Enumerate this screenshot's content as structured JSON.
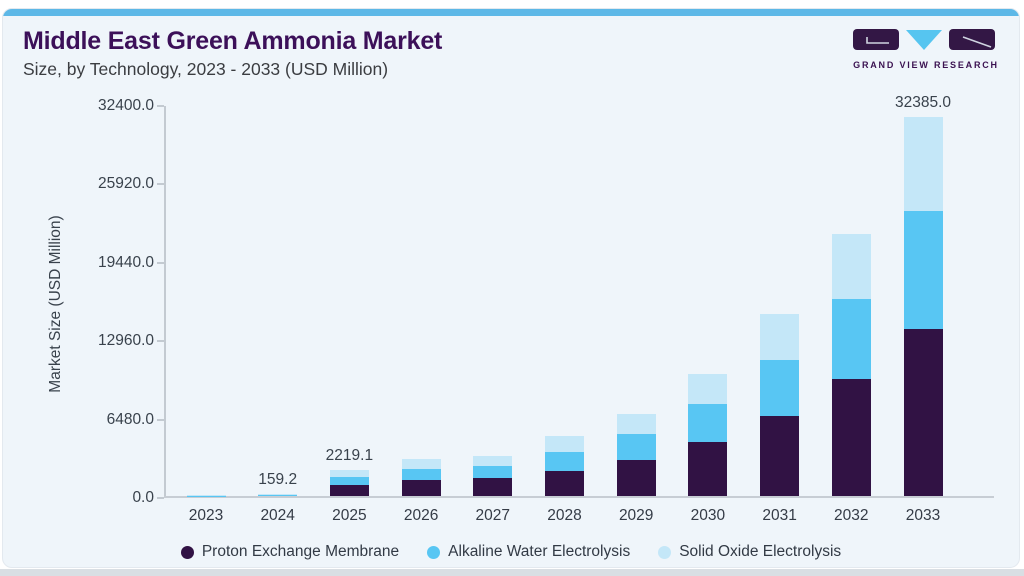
{
  "page": {
    "title": "Middle East Green Ammonia Market",
    "subtitle": "Size, by Technology, 2023 - 2033 (USD Million)"
  },
  "logo": {
    "text": "GRAND VIEW RESEARCH"
  },
  "colors": {
    "top_accent_bar": "#5db8e7",
    "card_background": "#eff5fa",
    "title_purple": "#3c1059",
    "axis_text": "#39424c",
    "axis_line": "#c3cad1",
    "bottom_strip": "#d9dee3",
    "series_pem": "#311244",
    "series_awe": "#58c6f3",
    "series_soe": "#c4e7f8"
  },
  "chart_data": {
    "type": "bar",
    "stacked": true,
    "title": "Middle East Green Ammonia Market",
    "subtitle": "Size, by Technology, 2023 - 2033 (USD Million)",
    "xlabel": "",
    "ylabel": "Market Size (USD Million)",
    "categories": [
      "2023",
      "2024",
      "2025",
      "2026",
      "2027",
      "2028",
      "2029",
      "2030",
      "2031",
      "2032",
      "2033"
    ],
    "series": [
      {
        "name": "Proton Exchange Membrane",
        "color": "#311244",
        "values": [
          22,
          70,
          963.1,
          1340,
          1570,
          2180,
          3100,
          4610,
          6860,
          9970,
          14270
        ]
      },
      {
        "name": "Alkaline Water Electrolysis",
        "color": "#58c6f3",
        "values": [
          16,
          50,
          620,
          1000,
          1025,
          1600,
          2160,
          3250,
          4780,
          6860,
          10055
        ]
      },
      {
        "name": "Solid Oxide Electrolysis",
        "color": "#c4e7f8",
        "values": [
          12,
          39.2,
          636,
          795,
          855,
          1310,
          1740,
          2590,
          3900,
          5530,
          8060
        ]
      }
    ],
    "totals": [
      50,
      159.2,
      2219.1,
      3135,
      3450,
      5090,
      7000,
      10450,
      15540,
      22360,
      32385.0
    ],
    "bar_value_labels": [
      "",
      "159.2",
      "2219.1",
      "",
      "",
      "",
      "",
      "",
      "",
      "",
      "32385.0"
    ],
    "yticks": [
      0,
      6480,
      12960,
      19440,
      25920,
      32400
    ],
    "ytick_labels": [
      "0.0",
      "6480.0",
      "12960.0",
      "19440.0",
      "25920.0",
      "32400.0"
    ],
    "ylim": [
      0,
      32400
    ],
    "bar_scale_max": 33500,
    "grid": false,
    "legend_position": "bottom"
  }
}
